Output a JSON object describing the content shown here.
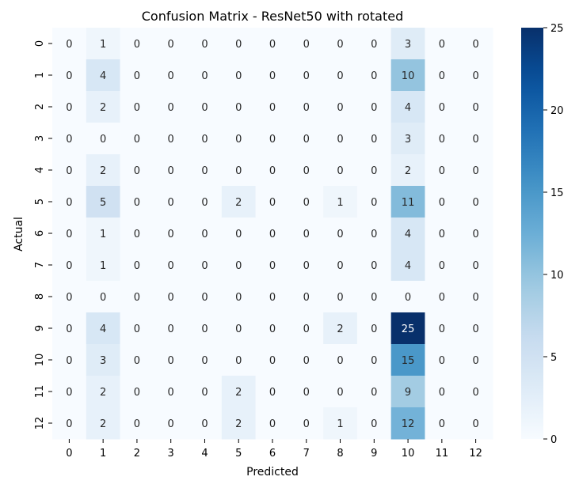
{
  "chart_data": {
    "type": "heatmap",
    "title": "Confusion Matrix - ResNet50 with rotated",
    "xlabel": "Predicted",
    "ylabel": "Actual",
    "x_categories": [
      "0",
      "1",
      "2",
      "3",
      "4",
      "5",
      "6",
      "7",
      "8",
      "9",
      "10",
      "11",
      "12"
    ],
    "y_categories": [
      "0",
      "1",
      "2",
      "3",
      "4",
      "5",
      "6",
      "7",
      "8",
      "9",
      "10",
      "11",
      "12"
    ],
    "matrix": [
      [
        0,
        1,
        0,
        0,
        0,
        0,
        0,
        0,
        0,
        0,
        3,
        0,
        0
      ],
      [
        0,
        4,
        0,
        0,
        0,
        0,
        0,
        0,
        0,
        0,
        10,
        0,
        0
      ],
      [
        0,
        2,
        0,
        0,
        0,
        0,
        0,
        0,
        0,
        0,
        4,
        0,
        0
      ],
      [
        0,
        0,
        0,
        0,
        0,
        0,
        0,
        0,
        0,
        0,
        3,
        0,
        0
      ],
      [
        0,
        2,
        0,
        0,
        0,
        0,
        0,
        0,
        0,
        0,
        2,
        0,
        0
      ],
      [
        0,
        5,
        0,
        0,
        0,
        2,
        0,
        0,
        1,
        0,
        11,
        0,
        0
      ],
      [
        0,
        1,
        0,
        0,
        0,
        0,
        0,
        0,
        0,
        0,
        4,
        0,
        0
      ],
      [
        0,
        1,
        0,
        0,
        0,
        0,
        0,
        0,
        0,
        0,
        4,
        0,
        0
      ],
      [
        0,
        0,
        0,
        0,
        0,
        0,
        0,
        0,
        0,
        0,
        0,
        0,
        0
      ],
      [
        0,
        4,
        0,
        0,
        0,
        0,
        0,
        0,
        2,
        0,
        25,
        0,
        0
      ],
      [
        0,
        3,
        0,
        0,
        0,
        0,
        0,
        0,
        0,
        0,
        15,
        0,
        0
      ],
      [
        0,
        2,
        0,
        0,
        0,
        2,
        0,
        0,
        0,
        0,
        9,
        0,
        0
      ],
      [
        0,
        2,
        0,
        0,
        0,
        2,
        0,
        0,
        1,
        0,
        12,
        0,
        0
      ]
    ],
    "colorbar": {
      "min": 0,
      "max": 25,
      "ticks": [
        0,
        5,
        10,
        15,
        20,
        25
      ],
      "colormap": "Blues"
    },
    "annotations": true,
    "grid": false
  }
}
